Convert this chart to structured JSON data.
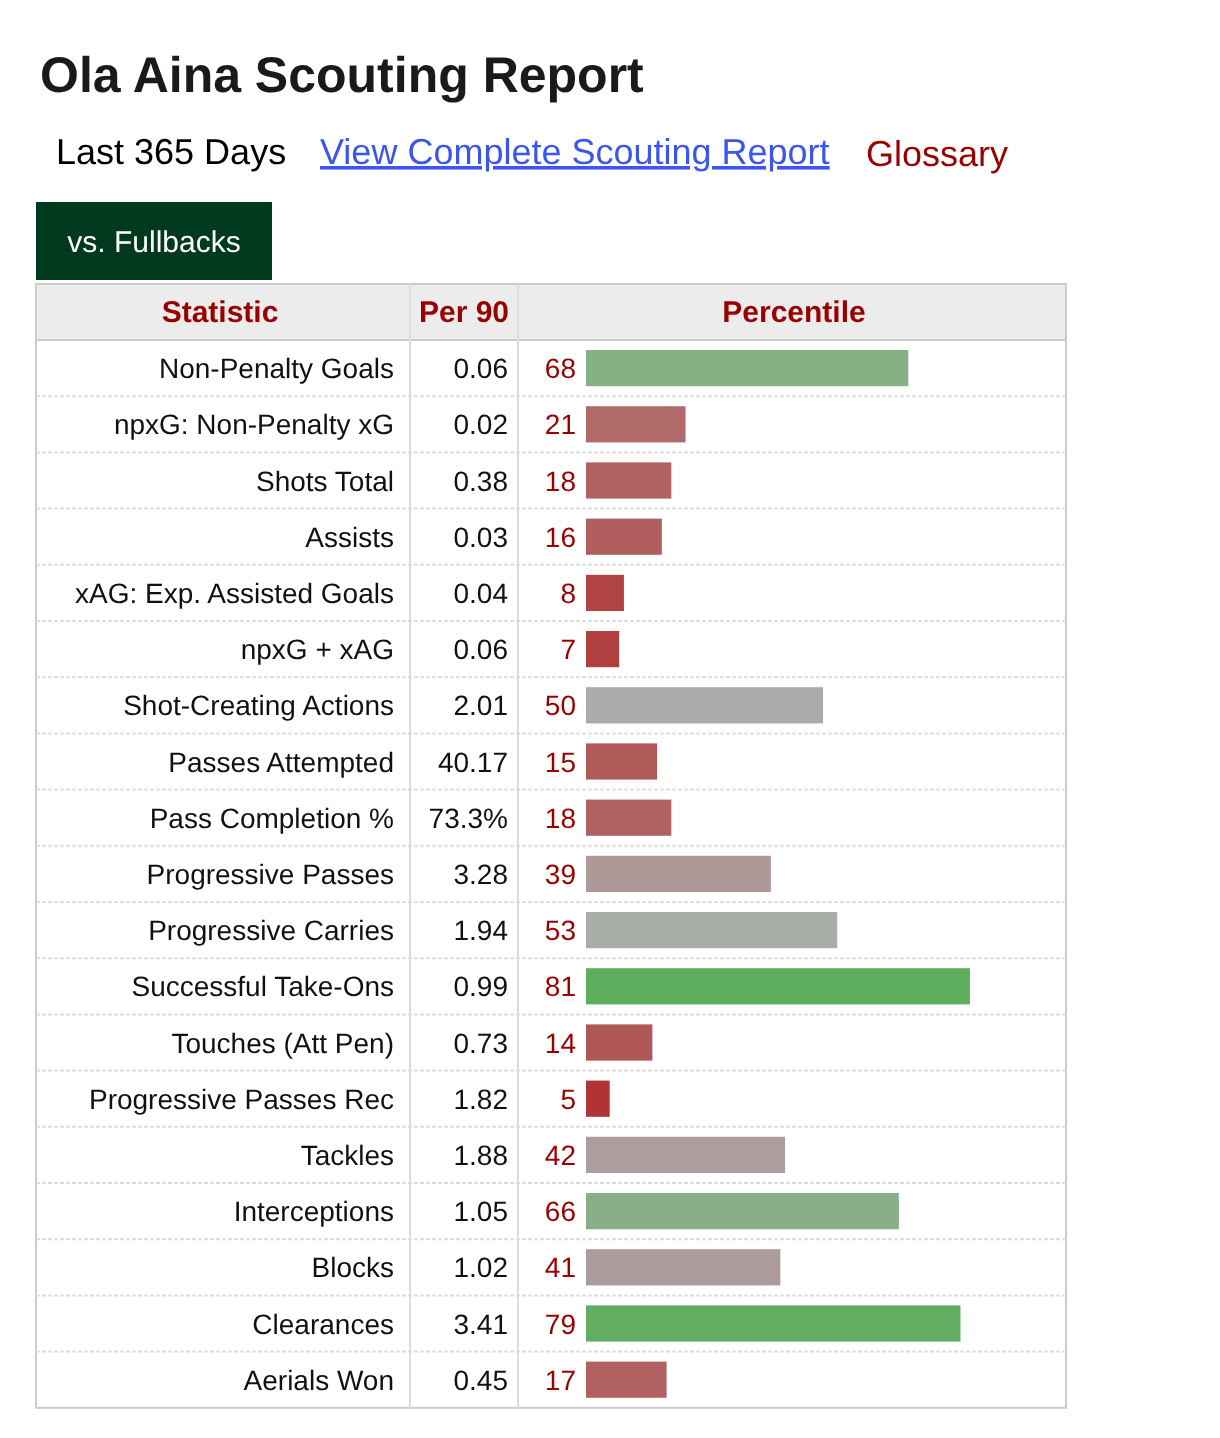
{
  "chart_data": {
    "type": "bar",
    "orientation": "horizontal",
    "title": "Ola Aina Scouting Report",
    "ylabel": "Statistic",
    "xlabel": "Percentile",
    "categories": [
      "Non-Penalty Goals",
      "npxG: Non-Penalty xG",
      "Shots Total",
      "Assists",
      "xAG: Exp. Assisted Goals",
      "npxG + xAG",
      "Shot-Creating Actions",
      "Passes Attempted",
      "Pass Completion %",
      "Progressive Passes",
      "Progressive Carries",
      "Successful Take-Ons",
      "Touches (Att Pen)",
      "Progressive Passes Rec",
      "Tackles",
      "Interceptions",
      "Blocks",
      "Clearances",
      "Aerials Won"
    ],
    "values": [
      68,
      21,
      18,
      16,
      8,
      7,
      50,
      15,
      18,
      39,
      53,
      81,
      14,
      5,
      42,
      66,
      41,
      79,
      17
    ],
    "colors": [
      "#85b084",
      "#b06a6a",
      "#b06262",
      "#b05e5e",
      "#b04444",
      "#b04040",
      "#ababab",
      "#b05a5a",
      "#b06262",
      "#ae9898",
      "#a7aea7",
      "#5fad5f",
      "#b05858",
      "#b03434",
      "#ae9d9d",
      "#88ae88",
      "#ae9b9b",
      "#62ad62",
      "#b06060"
    ],
    "xlim": [
      0,
      100
    ],
    "data_labels": true,
    "annotations": [
      "Last 365 Days",
      "View Complete Scouting Report",
      "Glossary",
      "vs. Fullbacks",
      "Per 90",
      "0.06",
      "0.02",
      "0.38",
      "0.03",
      "0.04",
      "0.06",
      "2.01",
      "40.17",
      "73.3%",
      "3.28",
      "1.94",
      "0.99",
      "0.73",
      "1.82",
      "1.88",
      "1.05",
      "1.02",
      "3.41",
      "0.45"
    ]
  }
}
